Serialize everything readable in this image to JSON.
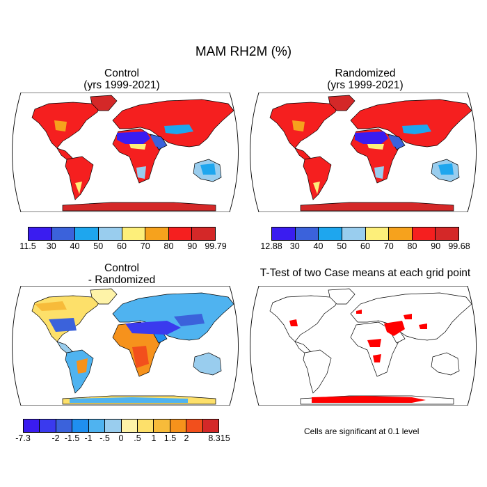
{
  "title": "MAM RH2M (%)",
  "panels": {
    "control": {
      "title_line1": "Control",
      "title_line2": "(yrs 1999-2021)"
    },
    "randomized": {
      "title_line1": "Randomized",
      "title_line2": "(yrs 1999-2021)"
    },
    "difference": {
      "title_line1": "Control",
      "title_line2": "- Randomized"
    },
    "ttest": {
      "title": "T-Test of two Case means at each grid point",
      "note": "Cells are significant at 0.1 level"
    }
  },
  "colorbars": {
    "control": {
      "labels": [
        "11.5",
        "30",
        "40",
        "50",
        "60",
        "70",
        "80",
        "90",
        "99.79"
      ],
      "colors": [
        "#3a1cf0",
        "#3b62db",
        "#1ea6ee",
        "#99cdee",
        "#fdef7a",
        "#f6a21d",
        "#f51f1f",
        "#d42828"
      ]
    },
    "randomized": {
      "labels": [
        "12.88",
        "30",
        "40",
        "50",
        "60",
        "70",
        "80",
        "90",
        "99.68"
      ],
      "colors": [
        "#3a1cf0",
        "#3b62db",
        "#1ea6ee",
        "#99cdee",
        "#fdef7a",
        "#f6a21d",
        "#f51f1f",
        "#d42828"
      ]
    },
    "difference": {
      "labels": [
        "-7.3",
        "",
        "-2",
        "-1.5",
        "-1",
        "-.5",
        "0",
        ".5",
        "1",
        "1.5",
        "2",
        "",
        "8.315"
      ],
      "colors": [
        "#3a1cf0",
        "#3a3aee",
        "#3b62db",
        "#1f8ff0",
        "#4fb3f0",
        "#99cdee",
        "#fef3a8",
        "#fde06a",
        "#f7bb3a",
        "#f6921c",
        "#f24f1c",
        "#d42828"
      ]
    }
  },
  "map_colors": {
    "ocean": "#ffffff",
    "coast": "#000000",
    "significant": "#ff0000"
  }
}
